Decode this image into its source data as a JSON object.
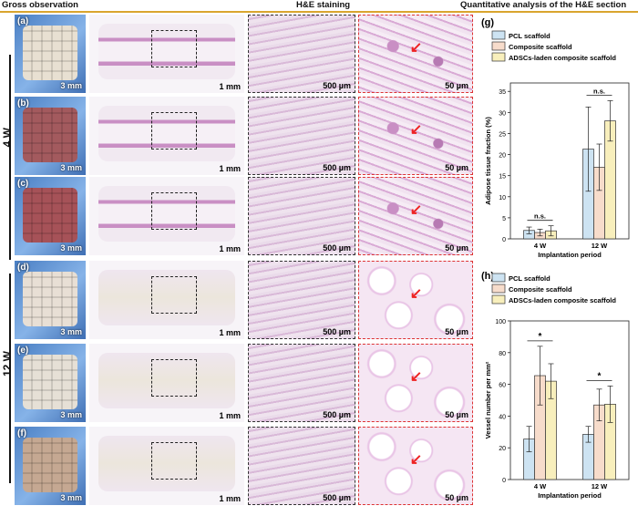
{
  "headers": {
    "gross": "Gross observation",
    "he": "H&E staining",
    "quant": "Quantitative analysis of the H&E section"
  },
  "weeks": {
    "w4": "4 W",
    "w12": "12 W"
  },
  "rows": [
    {
      "label": "(a)",
      "gross_scale": "3 mm",
      "section_scale": "1 mm",
      "he_scale": "500 µm",
      "hi_scale": "50 µm"
    },
    {
      "label": "(b)",
      "gross_scale": "3 mm",
      "section_scale": "1 mm",
      "he_scale": "500 µm",
      "hi_scale": "50 µm"
    },
    {
      "label": "(c)",
      "gross_scale": "3 mm",
      "section_scale": "1 mm",
      "he_scale": "500 µm",
      "hi_scale": "50 µm"
    },
    {
      "label": "(d)",
      "gross_scale": "3 mm",
      "section_scale": "1 mm",
      "he_scale": "500 µm",
      "hi_scale": "50 µm"
    },
    {
      "label": "(e)",
      "gross_scale": "3 mm",
      "section_scale": "1 mm",
      "he_scale": "500 µm",
      "hi_scale": "50 µm"
    },
    {
      "label": "(f)",
      "gross_scale": "3 mm",
      "section_scale": "1 mm",
      "he_scale": "500 µm",
      "hi_scale": "50 µm"
    }
  ],
  "colors": {
    "pcl": "#cde3f2",
    "composite": "#f7dccb",
    "adsc": "#f8efbc",
    "gold": "#d9a52e",
    "sample_tissue": "#c98fc4",
    "sample_fat": "#ece6dc"
  },
  "chart_data": [
    {
      "panel": "(g)",
      "type": "bar",
      "categories": [
        "4 W",
        "12 W"
      ],
      "series": [
        {
          "name": "PCL scaffold",
          "values": [
            2,
            21.3
          ],
          "errors": [
            0.8,
            10
          ]
        },
        {
          "name": "Composite scaffold",
          "values": [
            1.5,
            17
          ],
          "errors": [
            0.8,
            5.5
          ]
        },
        {
          "name": "ADSCs-laden composite scaffold",
          "values": [
            1.9,
            28
          ],
          "errors": [
            1.2,
            4.8
          ]
        }
      ],
      "ylabel": "Adipose tissue fraction (%)",
      "xlabel": "Implantation period",
      "ylim": [
        0,
        37
      ],
      "yticks": [
        0,
        5,
        10,
        15,
        20,
        25,
        30,
        35
      ],
      "annotations": [
        "n.s.",
        "n.s."
      ],
      "legend": "top"
    },
    {
      "panel": "(h)",
      "type": "bar",
      "categories": [
        "4 W",
        "12 W"
      ],
      "series": [
        {
          "name": "PCL scaffold",
          "values": [
            25.5,
            28.5
          ],
          "errors": [
            8,
            5
          ]
        },
        {
          "name": "Composite scaffold",
          "values": [
            65.5,
            47
          ],
          "errors": [
            18.5,
            10
          ]
        },
        {
          "name": "ADSCs-laden composite scaffold",
          "values": [
            62,
            47.5
          ],
          "errors": [
            11,
            11.5
          ]
        }
      ],
      "ylabel": "Vessel number per mm²",
      "xlabel": "Implantation period",
      "ylim": [
        0,
        100
      ],
      "yticks": [
        0,
        20,
        40,
        60,
        80,
        100
      ],
      "annotations": [
        "*",
        "*"
      ],
      "legend": "top"
    }
  ]
}
